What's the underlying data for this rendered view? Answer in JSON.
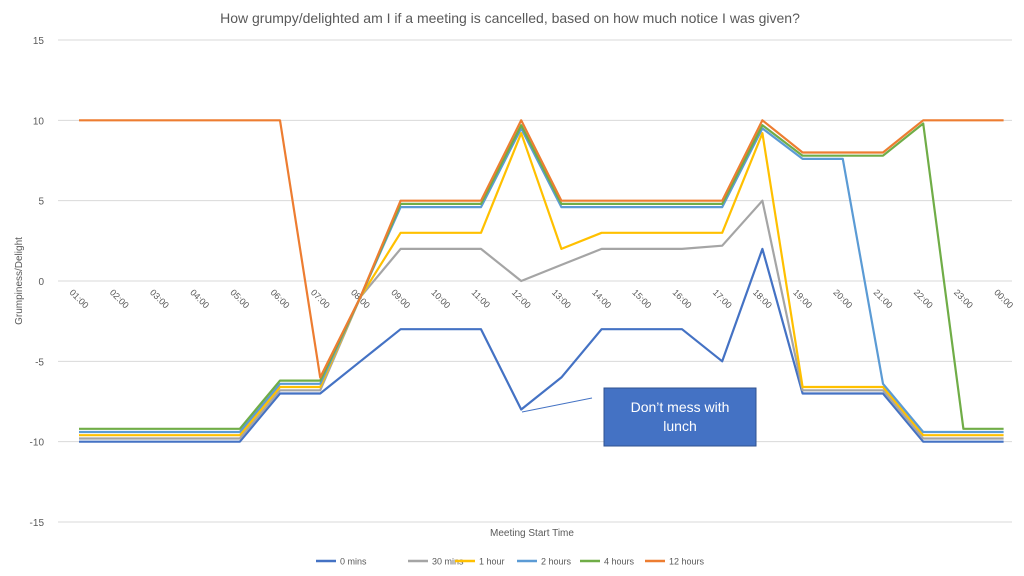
{
  "chart_data": {
    "type": "line",
    "title": "How grumpy/delighted am I if a meeting is cancelled, based on how much notice I was given?",
    "xlabel": "Meeting Start Time",
    "ylabel": "Grumpiness/Delight",
    "ylim": [
      -15,
      15
    ],
    "yticks": [
      15,
      10,
      5,
      0,
      -5,
      -10,
      -15
    ],
    "grid": true,
    "legend_position": "bottom",
    "categories": [
      "01:00",
      "02:00",
      "03:00",
      "04:00",
      "05:00",
      "06:00",
      "07:00",
      "08:00",
      "09:00",
      "10:00",
      "11:00",
      "12:00",
      "13:00",
      "14:00",
      "15:00",
      "16:00",
      "17:00",
      "18:00",
      "19:00",
      "20:00",
      "21:00",
      "22:00",
      "23:00",
      "00:00"
    ],
    "series": [
      {
        "name": "0 mins",
        "color": "#4472C4",
        "values": [
          -10,
          -10,
          -10,
          -10,
          -10,
          -7,
          -7,
          -5,
          -3,
          -3,
          -3,
          -8,
          -6,
          -3,
          -3,
          -3,
          -5,
          2,
          -7,
          -7,
          -7,
          -10,
          -10,
          -10
        ]
      },
      {
        "name": "30 mins",
        "color": "#A5A5A5",
        "values": [
          -9.8,
          -9.8,
          -9.8,
          -9.8,
          -9.8,
          -6.8,
          -6.8,
          -1,
          2,
          2,
          2,
          0,
          1,
          2,
          2,
          2,
          2.2,
          5,
          -6.8,
          -6.8,
          -6.8,
          -9.8,
          -9.8,
          -9.8
        ]
      },
      {
        "name": "1 hour",
        "color": "#FFC000",
        "values": [
          -9.6,
          -9.6,
          -9.6,
          -9.6,
          -9.6,
          -6.6,
          -6.6,
          -1,
          3,
          3,
          3,
          9.2,
          2,
          3,
          3,
          3,
          3,
          9.2,
          -6.6,
          -6.6,
          -6.6,
          -9.6,
          -9.6,
          -9.6
        ]
      },
      {
        "name": "2 hours",
        "color": "#5B9BD5",
        "values": [
          -9.4,
          -9.4,
          -9.4,
          -9.4,
          -9.4,
          -6.4,
          -6.4,
          -1,
          4.6,
          4.6,
          4.6,
          9.5,
          4.6,
          4.6,
          4.6,
          4.6,
          4.6,
          9.5,
          7.6,
          7.6,
          -6.4,
          -9.4,
          -9.4,
          -9.4
        ]
      },
      {
        "name": "4 hours",
        "color": "#70AD47",
        "values": [
          -9.2,
          -9.2,
          -9.2,
          -9.2,
          -9.2,
          -6.2,
          -6.2,
          -1,
          4.8,
          4.8,
          4.8,
          9.7,
          4.8,
          4.8,
          4.8,
          4.8,
          4.8,
          9.7,
          7.8,
          7.8,
          7.8,
          9.8,
          -9.2,
          -9.2
        ]
      },
      {
        "name": "12 hours",
        "color": "#ED7D31",
        "values": [
          10,
          10,
          10,
          10,
          10,
          10,
          -6,
          -1,
          5,
          5,
          5,
          10,
          5,
          5,
          5,
          5,
          5,
          10,
          8,
          8,
          8,
          10,
          10,
          10
        ]
      }
    ],
    "annotation": {
      "text_line1": "Don’t mess with",
      "text_line2": "lunch",
      "points_to": {
        "x": "12:00",
        "y": -8
      },
      "box_color": "#4472C4"
    }
  }
}
